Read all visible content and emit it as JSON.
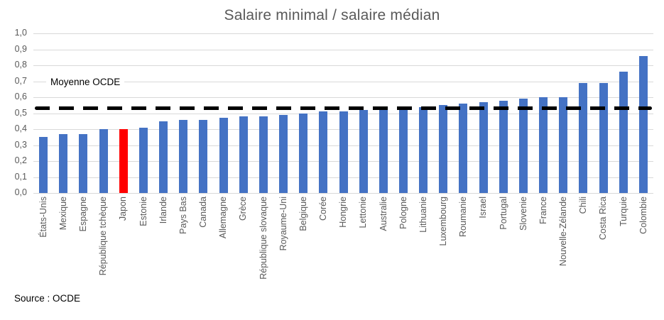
{
  "chart": {
    "title": "Salaire minimal / salaire médian",
    "annotation": "Moyenne OCDE",
    "source": "Source : OCDE"
  },
  "chart_data": {
    "type": "bar",
    "title": "Salaire minimal / salaire médian",
    "xlabel": "",
    "ylabel": "",
    "ylim": [
      0.0,
      1.0
    ],
    "grid": true,
    "ytick_labels_top_to_bottom": [
      "1,0",
      "0,9",
      "0,8",
      "0,7",
      "0,6",
      "0,5",
      "0,4",
      "0,3",
      "0,2",
      "0,1",
      "0,0"
    ],
    "ytick_values": [
      1.0,
      0.9,
      0.8,
      0.7,
      0.6,
      0.5,
      0.4,
      0.3,
      0.2,
      0.1,
      0.0
    ],
    "categories": [
      "États-Unis",
      "Mexique",
      "Espagne",
      "République tchèque",
      "Japon",
      "Estonie",
      "Irlande",
      "Pays Bas",
      "Canada",
      "Allemagne",
      "Grèce",
      "République slovaque",
      "Royaume-Uni",
      "Belgique",
      "Corée",
      "Hongrie",
      "Lettonie",
      "Australie",
      "Pologne",
      "Lithuanie",
      "Luxembourg",
      "Roumanie",
      "Israel",
      "Portugal",
      "Slovenie",
      "France",
      "Nouvelle-Zélande",
      "Chili",
      "Costa Rica",
      "Turquie",
      "Colombie"
    ],
    "values": [
      0.35,
      0.37,
      0.37,
      0.4,
      0.4,
      0.41,
      0.45,
      0.46,
      0.46,
      0.47,
      0.48,
      0.48,
      0.49,
      0.5,
      0.51,
      0.51,
      0.52,
      0.53,
      0.53,
      0.54,
      0.55,
      0.56,
      0.57,
      0.58,
      0.59,
      0.6,
      0.6,
      0.69,
      0.69,
      0.76,
      0.86
    ],
    "bar_color": "#4472C4",
    "highlight_category": "Japon",
    "highlight_color": "#FF0000",
    "gridline_color": "#D9D9D9",
    "axis_text_color": "#595959",
    "reference_line": {
      "label": "Moyenne OCDE",
      "value": 0.53,
      "style": "dashed",
      "color": "#000000"
    },
    "legend": "none",
    "source": "Source : OCDE"
  }
}
